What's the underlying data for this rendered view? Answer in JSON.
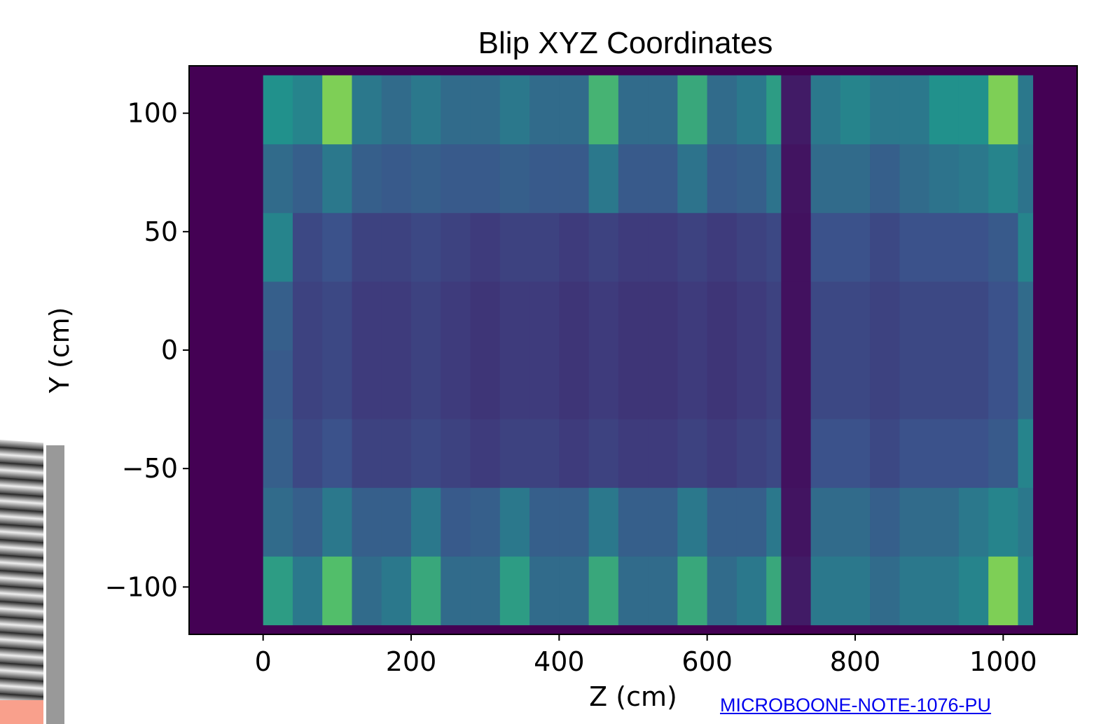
{
  "chart_data": {
    "type": "heatmap",
    "title": "Blip XYZ Coordinates",
    "xlabel": "Z (cm)",
    "ylabel": "Y (cm)",
    "xlim": [
      -100,
      1100
    ],
    "ylim": [
      -120,
      120
    ],
    "xticks": [
      0,
      200,
      400,
      600,
      800,
      1000
    ],
    "yticks": [
      {
        "value": -100,
        "label": "−100"
      },
      {
        "value": -50,
        "label": "−50"
      },
      0,
      50,
      100
    ],
    "colormap": "viridis",
    "xbins": [
      0,
      40,
      80,
      120,
      160,
      200,
      240,
      280,
      320,
      360,
      400,
      440,
      480,
      520,
      560,
      600,
      640,
      680,
      700,
      740,
      780,
      820,
      860,
      900,
      940,
      980,
      1020,
      1040
    ],
    "ybins": [
      -116,
      -87,
      -58,
      -29,
      0,
      29,
      58,
      87,
      116
    ],
    "values": [
      [
        0.55,
        0.4,
        0.7,
        0.35,
        0.4,
        0.6,
        0.35,
        0.35,
        0.55,
        0.35,
        0.35,
        0.6,
        0.35,
        0.35,
        0.6,
        0.35,
        0.4,
        0.6,
        0.08,
        0.4,
        0.4,
        0.35,
        0.4,
        0.4,
        0.45,
        0.8,
        0.45
      ],
      [
        0.35,
        0.3,
        0.4,
        0.3,
        0.3,
        0.4,
        0.28,
        0.3,
        0.4,
        0.3,
        0.3,
        0.4,
        0.3,
        0.3,
        0.4,
        0.3,
        0.3,
        0.4,
        0.06,
        0.35,
        0.35,
        0.3,
        0.35,
        0.35,
        0.4,
        0.45,
        0.4
      ],
      [
        0.3,
        0.22,
        0.25,
        0.2,
        0.2,
        0.22,
        0.2,
        0.18,
        0.2,
        0.2,
        0.18,
        0.2,
        0.18,
        0.18,
        0.2,
        0.18,
        0.2,
        0.22,
        0.05,
        0.25,
        0.25,
        0.22,
        0.25,
        0.25,
        0.25,
        0.28,
        0.45
      ],
      [
        0.28,
        0.2,
        0.22,
        0.18,
        0.18,
        0.2,
        0.18,
        0.16,
        0.18,
        0.18,
        0.16,
        0.18,
        0.16,
        0.16,
        0.18,
        0.16,
        0.18,
        0.2,
        0.05,
        0.22,
        0.22,
        0.2,
        0.22,
        0.22,
        0.22,
        0.25,
        0.35
      ],
      [
        0.3,
        0.2,
        0.22,
        0.18,
        0.18,
        0.2,
        0.18,
        0.16,
        0.18,
        0.18,
        0.16,
        0.18,
        0.16,
        0.16,
        0.18,
        0.16,
        0.18,
        0.2,
        0.05,
        0.22,
        0.22,
        0.2,
        0.22,
        0.22,
        0.22,
        0.25,
        0.35
      ],
      [
        0.45,
        0.22,
        0.25,
        0.2,
        0.2,
        0.22,
        0.2,
        0.18,
        0.2,
        0.2,
        0.18,
        0.2,
        0.18,
        0.18,
        0.2,
        0.18,
        0.2,
        0.22,
        0.05,
        0.25,
        0.25,
        0.22,
        0.25,
        0.25,
        0.25,
        0.28,
        0.45
      ],
      [
        0.35,
        0.3,
        0.4,
        0.3,
        0.28,
        0.3,
        0.28,
        0.28,
        0.3,
        0.28,
        0.28,
        0.4,
        0.28,
        0.28,
        0.38,
        0.28,
        0.3,
        0.38,
        0.06,
        0.35,
        0.35,
        0.3,
        0.35,
        0.38,
        0.4,
        0.45,
        0.38
      ],
      [
        0.5,
        0.45,
        0.8,
        0.4,
        0.35,
        0.4,
        0.35,
        0.35,
        0.4,
        0.35,
        0.35,
        0.65,
        0.35,
        0.35,
        0.6,
        0.35,
        0.4,
        0.55,
        0.08,
        0.4,
        0.45,
        0.4,
        0.4,
        0.5,
        0.5,
        0.8,
        0.4
      ]
    ]
  },
  "footer": {
    "link": "MICROBOONE-NOTE-1076-PU"
  }
}
